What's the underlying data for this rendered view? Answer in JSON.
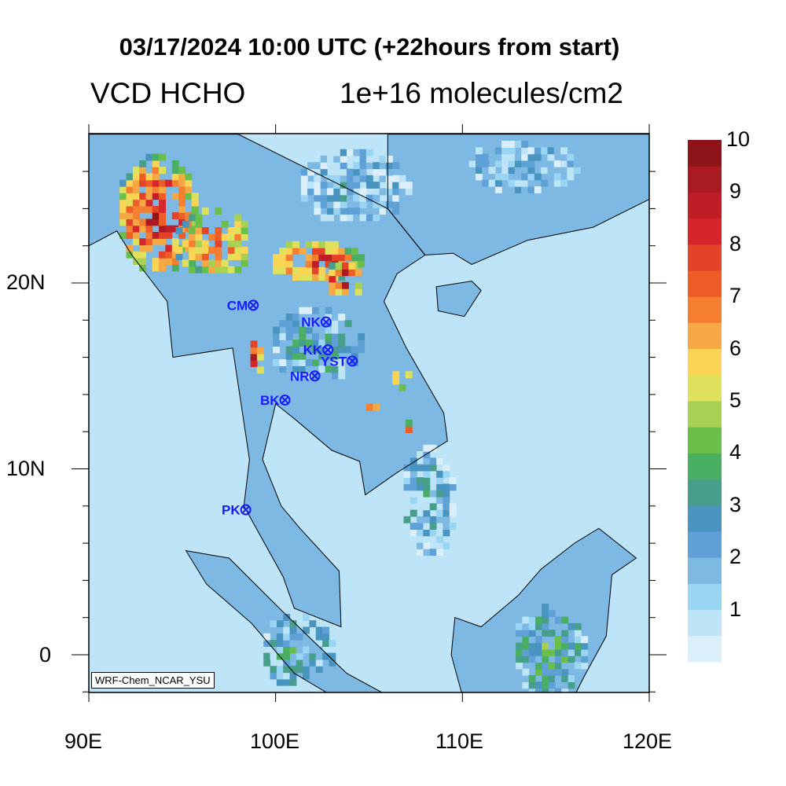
{
  "title": "03/17/2024 10:00 UTC (+22hours from start)",
  "variable": "VCD HCHO",
  "units": "1e+16 molecules/cm2",
  "credit": "WRF-Chem_NCAR_YSU",
  "x_ticks": [
    "90E",
    "100E",
    "110E",
    "120E"
  ],
  "y_ticks": [
    "20N",
    "10N",
    "0"
  ],
  "colorbar": {
    "labels": [
      "1",
      "2",
      "3",
      "4",
      "5",
      "6",
      "7",
      "8",
      "9",
      "10"
    ],
    "levels_min": 0.5,
    "levels_step": 0.5,
    "colors": [
      "#dbeffb",
      "#bde4f7",
      "#9ad6f3",
      "#7eb9e4",
      "#5fa1d6",
      "#4a94c0",
      "#479e8a",
      "#4aae63",
      "#6abf4b",
      "#a8d154",
      "#dfe15d",
      "#fbd455",
      "#f6a844",
      "#f57e31",
      "#ee5d28",
      "#e24329",
      "#d6262b",
      "#c01e26",
      "#a91b21",
      "#8f1419"
    ]
  },
  "extent": {
    "lon": [
      90,
      120
    ],
    "lat": [
      -2.2,
      28
    ]
  },
  "stations": [
    {
      "name": "CM",
      "lon": 98.8,
      "lat": 18.8
    },
    {
      "name": "NK",
      "lon": 102.7,
      "lat": 17.9
    },
    {
      "name": "KK",
      "lon": 102.8,
      "lat": 16.4
    },
    {
      "name": "YST",
      "lon": 104.1,
      "lat": 15.8
    },
    {
      "name": "NR",
      "lon": 102.1,
      "lat": 15.0
    },
    {
      "name": "BK",
      "lon": 100.5,
      "lat": 13.7
    },
    {
      "name": "PK",
      "lon": 98.4,
      "lat": 7.8
    }
  ]
}
